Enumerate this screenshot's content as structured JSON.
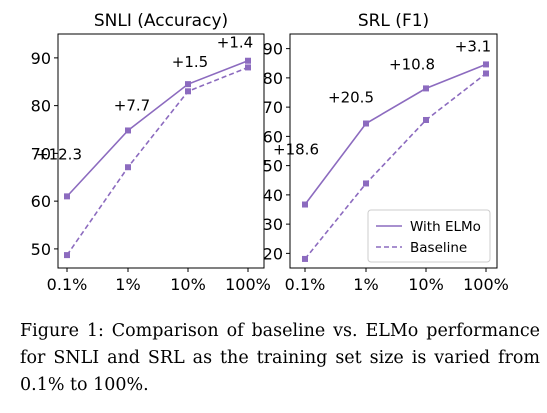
{
  "chart_data": [
    {
      "type": "line",
      "title": "SNLI (Accuracy)",
      "categories": [
        "0.1%",
        "1%",
        "10%",
        "100%"
      ],
      "yticks": [
        50,
        60,
        70,
        80,
        90
      ],
      "ylim": [
        46,
        95
      ],
      "series": [
        {
          "name": "With ELMo",
          "values": [
            61.0,
            74.8,
            84.5,
            89.4
          ],
          "style": "solid",
          "color": "#8c6bbf"
        },
        {
          "name": "Baseline",
          "values": [
            48.7,
            67.1,
            83.0,
            88.0
          ],
          "style": "dashed",
          "color": "#8c6bbf"
        }
      ],
      "annotations": [
        "+12.3",
        "+7.7",
        "+1.5",
        "+1.4"
      ]
    },
    {
      "type": "line",
      "title": "SRL (F1)",
      "categories": [
        "0.1%",
        "1%",
        "10%",
        "100%"
      ],
      "yticks": [
        20,
        30,
        40,
        50,
        60,
        70,
        80,
        90
      ],
      "ylim": [
        15,
        95
      ],
      "series": [
        {
          "name": "With ELMo",
          "values": [
            36.7,
            64.4,
            76.4,
            84.6
          ],
          "style": "solid",
          "color": "#8c6bbf"
        },
        {
          "name": "Baseline",
          "values": [
            18.1,
            43.9,
            65.6,
            81.5
          ],
          "style": "dashed",
          "color": "#8c6bbf"
        }
      ],
      "annotations": [
        "+18.6",
        "+20.5",
        "+10.8",
        "+3.1"
      ],
      "legend": {
        "position": "bottom-right",
        "entries": [
          "With ELMo",
          "Baseline"
        ]
      }
    }
  ],
  "caption": "Figure 1: Comparison of baseline vs. ELMo performance for SNLI and SRL as the training set size is varied from 0.1% to 100%."
}
